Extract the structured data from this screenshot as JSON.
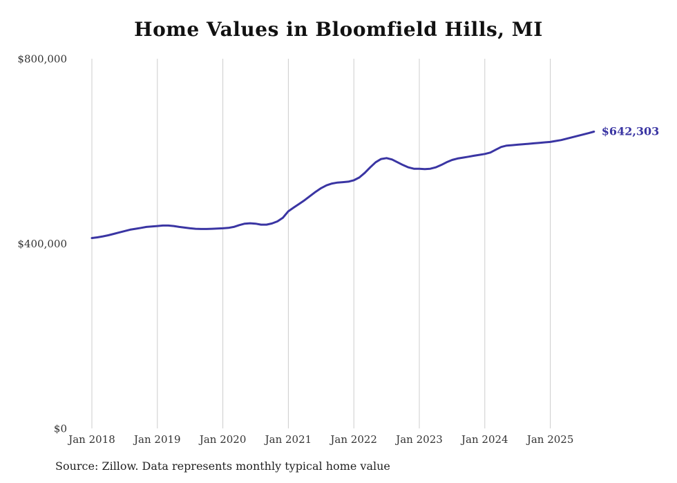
{
  "title": "Home Values in Bloomfield Hills, MI",
  "source_note": "Source: Zillow. Data represents monthly typical home value",
  "end_label": "$642,303",
  "colors": {
    "line": "#3a35a3",
    "end_label": "#3a35a3",
    "grid": "#cccccc",
    "axis_text": "#333333",
    "title_text": "#111111"
  },
  "chart_data": {
    "type": "line",
    "title": "Home Values in Bloomfield Hills, MI",
    "xlabel": "",
    "ylabel": "",
    "ylim": [
      0,
      800000
    ],
    "grid": "vertical-only",
    "legend": "none",
    "series_name": "Monthly typical home value",
    "end_label": "$642,303",
    "y_ticks": [
      {
        "value": 0,
        "label": "$0"
      },
      {
        "value": 400000,
        "label": "$400,000"
      },
      {
        "value": 800000,
        "label": "$800,000"
      }
    ],
    "x_tick_labels": [
      "Jan 2018",
      "Jan 2019",
      "Jan 2020",
      "Jan 2021",
      "Jan 2022",
      "Jan 2023",
      "Jan 2024",
      "Jan 2025"
    ],
    "x_tick_every_months": 12,
    "months": [
      "2018-01",
      "2018-02",
      "2018-03",
      "2018-04",
      "2018-05",
      "2018-06",
      "2018-07",
      "2018-08",
      "2018-09",
      "2018-10",
      "2018-11",
      "2018-12",
      "2019-01",
      "2019-02",
      "2019-03",
      "2019-04",
      "2019-05",
      "2019-06",
      "2019-07",
      "2019-08",
      "2019-09",
      "2019-10",
      "2019-11",
      "2019-12",
      "2020-01",
      "2020-02",
      "2020-03",
      "2020-04",
      "2020-05",
      "2020-06",
      "2020-07",
      "2020-08",
      "2020-09",
      "2020-10",
      "2020-11",
      "2020-12",
      "2021-01",
      "2021-02",
      "2021-03",
      "2021-04",
      "2021-05",
      "2021-06",
      "2021-07",
      "2021-08",
      "2021-09",
      "2021-10",
      "2021-11",
      "2021-12",
      "2022-01",
      "2022-02",
      "2022-03",
      "2022-04",
      "2022-05",
      "2022-06",
      "2022-07",
      "2022-08",
      "2022-09",
      "2022-10",
      "2022-11",
      "2022-12",
      "2023-01",
      "2023-02",
      "2023-03",
      "2023-04",
      "2023-05",
      "2023-06",
      "2023-07",
      "2023-08",
      "2023-09",
      "2023-10",
      "2023-11",
      "2023-12",
      "2024-01",
      "2024-02",
      "2024-03",
      "2024-04",
      "2024-05",
      "2024-06",
      "2024-07",
      "2024-08",
      "2024-09",
      "2024-10",
      "2024-11",
      "2024-12",
      "2025-01",
      "2025-02",
      "2025-03",
      "2025-04",
      "2025-05",
      "2025-06",
      "2025-07",
      "2025-08",
      "2025-09"
    ],
    "values": [
      412000,
      413500,
      415500,
      418000,
      421000,
      424000,
      427000,
      430000,
      432000,
      434000,
      436000,
      437000,
      438000,
      439000,
      439000,
      438000,
      436000,
      434500,
      433000,
      432000,
      431500,
      431500,
      432000,
      432500,
      433000,
      434000,
      436000,
      440000,
      443000,
      444000,
      443000,
      441000,
      441000,
      443500,
      448000,
      456000,
      470000,
      478000,
      486000,
      494000,
      503000,
      512000,
      520000,
      526000,
      530000,
      532000,
      533000,
      534000,
      537000,
      543000,
      553000,
      565000,
      576000,
      583000,
      585000,
      582000,
      576000,
      570000,
      565000,
      562000,
      562000,
      561000,
      562000,
      565000,
      570000,
      576000,
      581000,
      584000,
      586000,
      588000,
      590000,
      592000,
      594000,
      597000,
      603000,
      609000,
      612000,
      613000,
      614000,
      615000,
      616000,
      617000,
      618000,
      619000,
      620000,
      622000,
      624000,
      627000,
      630000,
      633000,
      636000,
      639000,
      642303
    ]
  }
}
